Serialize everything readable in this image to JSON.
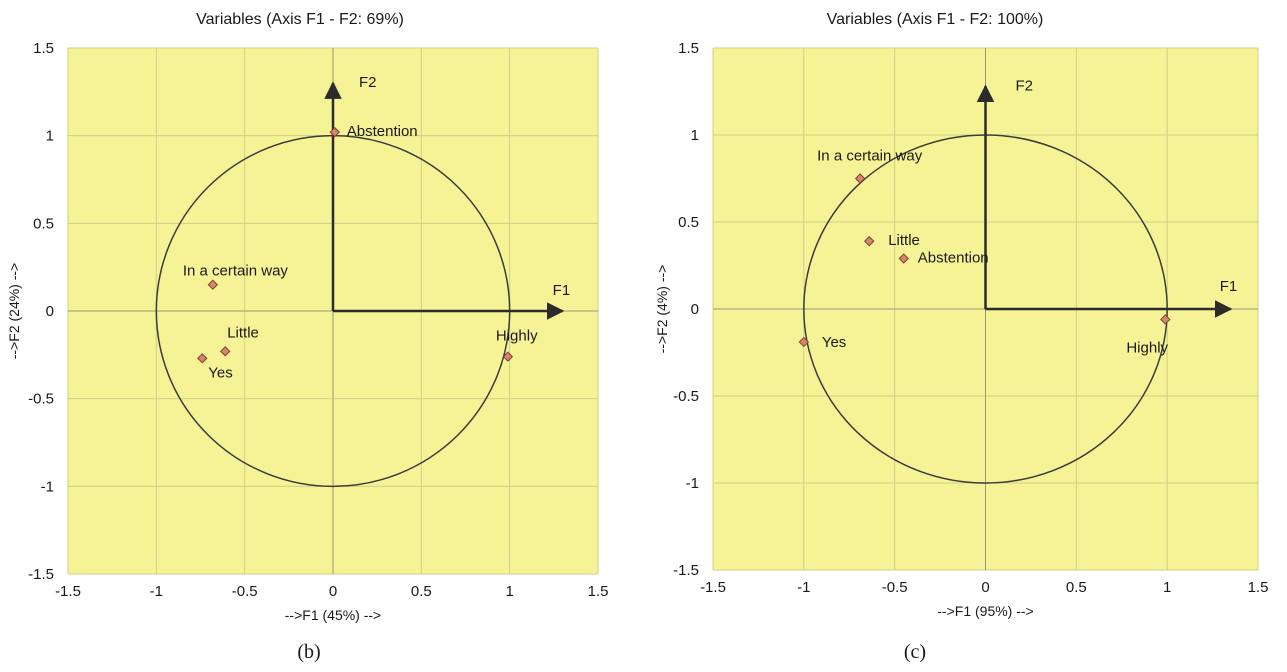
{
  "chart_data": [
    {
      "id": "b",
      "type": "scatter",
      "title": "Variables (Axis F1 - F2: 69%)",
      "xlabel": "-->F1 (45%) -->",
      "ylabel": "-->F2 (24%) -->",
      "caption": "(b)",
      "xlim": [
        -1.5,
        1.5
      ],
      "ylim": [
        -1.5,
        1.5
      ],
      "xticks": [
        "-1.5",
        "-1",
        "-0.5",
        "0",
        "0.5",
        "1",
        "1.5"
      ],
      "yticks": [
        "1.5",
        "1",
        "0.5",
        "0",
        "-0.5",
        "-1",
        "-1.5"
      ],
      "grid": true,
      "correlation_circle_radius": 1,
      "axis_vectors": [
        {
          "label": "F1",
          "x": 1.3,
          "y": 0
        },
        {
          "label": "F2",
          "x": 0,
          "y": 1.3
        }
      ],
      "points": [
        {
          "label": "Abstention",
          "x": 0.01,
          "y": 1.02
        },
        {
          "label": "In a certain way",
          "x": -0.68,
          "y": 0.15
        },
        {
          "label": "Little",
          "x": -0.61,
          "y": -0.23
        },
        {
          "label": "Yes",
          "x": -0.74,
          "y": -0.27
        },
        {
          "label": "Highly",
          "x": 0.99,
          "y": -0.26
        }
      ]
    },
    {
      "id": "c",
      "type": "scatter",
      "title": "Variables (Axis F1 - F2: 100%)",
      "xlabel": "-->F1 (95%) -->",
      "ylabel": "-->F2 (4%) -->",
      "caption": "(c)",
      "xlim": [
        -1.5,
        1.5
      ],
      "ylim": [
        -1.5,
        1.5
      ],
      "xticks": [
        "-1.5",
        "-1",
        "-0.5",
        "0",
        "0.5",
        "1",
        "1.5"
      ],
      "yticks": [
        "1.5",
        "1",
        "0.5",
        "0",
        "-0.5",
        "-1",
        "-1.5"
      ],
      "grid": true,
      "correlation_circle_radius": 1,
      "axis_vectors": [
        {
          "label": "F1",
          "x": 1.35,
          "y": 0
        },
        {
          "label": "F2",
          "x": 0,
          "y": 1.28
        }
      ],
      "points": [
        {
          "label": "In a certain way",
          "x": -0.69,
          "y": 0.75
        },
        {
          "label": "Little",
          "x": -0.64,
          "y": 0.39
        },
        {
          "label": "Abstention",
          "x": -0.45,
          "y": 0.29
        },
        {
          "label": "Yes",
          "x": -1.0,
          "y": -0.19
        },
        {
          "label": "Highly",
          "x": 0.99,
          "y": -0.06
        }
      ]
    }
  ],
  "colors": {
    "plot_background": "#f5f396",
    "grid": "#cfcf86",
    "circle": "#3b3b3b",
    "axis_vector": "#2b2b2b",
    "marker_fill": "#cf8872",
    "marker_stroke": "#8a3b2a"
  }
}
